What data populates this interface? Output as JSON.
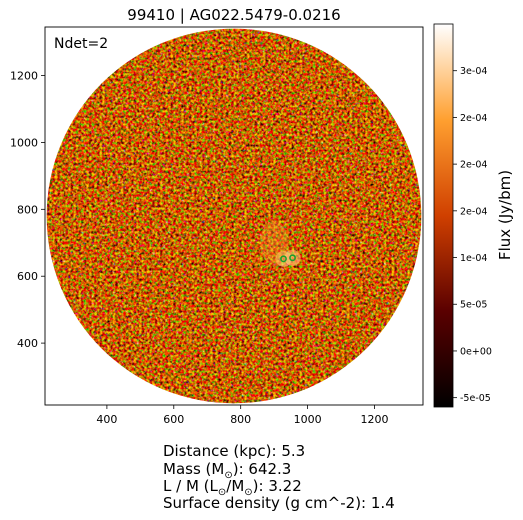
{
  "title": "99410 | AG022.5479-0.0216",
  "annotation": "Ndet=2",
  "colorbar_label": "Flux (Jy/bm)",
  "colormap": "afmhot",
  "source_marker_color": "#1e9e2e",
  "info": {
    "distance_label": "Distance (kpc): ",
    "distance_value": "5.3",
    "mass_label_prefix": "Mass (M",
    "mass_label_suffix": "): ",
    "mass_value": "642.3",
    "lm_label_prefix": "L / M (L",
    "lm_label_mid": "/M",
    "lm_label_suffix": "): ",
    "lm_value": "3.22",
    "surface_label": "Surface density (g cm^-2): ",
    "surface_value": "1.4",
    "sun_symbol": "⊙"
  },
  "chart_data": {
    "type": "heatmap",
    "title": "99410 | AG022.5479-0.0216",
    "xlim": [
      215,
      1345
    ],
    "ylim": [
      215,
      1345
    ],
    "x_ticks": [
      400,
      600,
      800,
      1000,
      1200
    ],
    "y_ticks": [
      400,
      600,
      800,
      1000,
      1200
    ],
    "x_tick_labels": [
      "400",
      "600",
      "800",
      "1000",
      "1200"
    ],
    "y_tick_labels": [
      "400",
      "600",
      "800",
      "1000",
      "1200"
    ],
    "image_circle": {
      "center_x": 780,
      "center_y": 780,
      "radius": 560
    },
    "colorbar": {
      "label": "Flux (Jy/bm)",
      "min": -6e-05,
      "max": 0.00035,
      "tick_values": [
        -5e-05,
        0,
        5e-05,
        0.0001,
        0.00015,
        0.0002,
        0.00025,
        0.0003
      ],
      "tick_labels": [
        "-5e-05",
        "0e+00",
        "5e-05",
        "1e-04",
        "2e-04",
        "2e-04",
        "2e-04",
        "3e-04"
      ]
    },
    "detections": [
      {
        "x": 928,
        "y": 652
      },
      {
        "x": 955,
        "y": 655
      }
    ],
    "grid": false
  }
}
